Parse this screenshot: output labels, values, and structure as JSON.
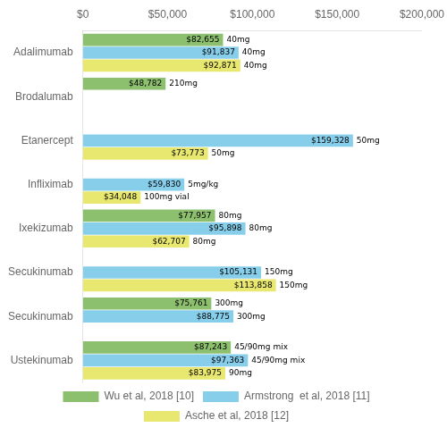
{
  "chart_data": {
    "type": "bar",
    "orientation": "horizontal",
    "categories": [
      "Adalimumab",
      "Brodalumab",
      "Etanercept",
      "Infliximab",
      "Ixekizumab",
      "Secukinumab",
      "Secukinumab",
      "Ustekinumab"
    ],
    "series": [
      {
        "name": "Wu et al, 2018 [10]",
        "color": "#8CBF6E",
        "values": [
          82655,
          48782,
          null,
          null,
          77957,
          null,
          75761,
          87243
        ],
        "value_labels": [
          "$82,655",
          "$48,782",
          null,
          null,
          "$77,957",
          null,
          "$75,761",
          "$87,243"
        ],
        "dose_labels": [
          "40mg",
          "210mg",
          null,
          null,
          "80mg",
          null,
          "300mg",
          "45/90mg mix"
        ]
      },
      {
        "name": "Armstrong  et al, 2018 [11]",
        "color": "#87CEEB",
        "values": [
          91837,
          null,
          159328,
          59830,
          95898,
          105131,
          88775,
          97363
        ],
        "value_labels": [
          "$91,837",
          null,
          "$159,328",
          "$59,830",
          "$95,898",
          "$105,131",
          "$88,775",
          "$97,363"
        ],
        "dose_labels": [
          "40mg",
          null,
          "50mg",
          "5mg/kg",
          "80mg",
          "150mg",
          "300mg",
          "45/90mg mix"
        ]
      },
      {
        "name": "Asche et al, 2018 [12]",
        "color": "#E8E870",
        "values": [
          92871,
          null,
          73773,
          34048,
          62707,
          113858,
          null,
          83975
        ],
        "value_labels": [
          "$92,871",
          null,
          "$73,773",
          "$34,048",
          "$62,707",
          "$113,858",
          null,
          "$83,975"
        ],
        "dose_labels": [
          "40mg",
          null,
          "50mg",
          "100mg vial",
          "80mg",
          "150mg",
          null,
          "90mg"
        ]
      }
    ],
    "xlim": [
      0,
      200000
    ],
    "xticks": [
      {
        "value": 0,
        "label": "$0"
      },
      {
        "value": 50000,
        "label": "$50,000"
      },
      {
        "value": 100000,
        "label": "$100,000"
      },
      {
        "value": 150000,
        "label": "$150,000"
      },
      {
        "value": 200000,
        "label": "$200,000"
      }
    ],
    "grid": false,
    "legend": "bottom",
    "data_labels": true
  }
}
